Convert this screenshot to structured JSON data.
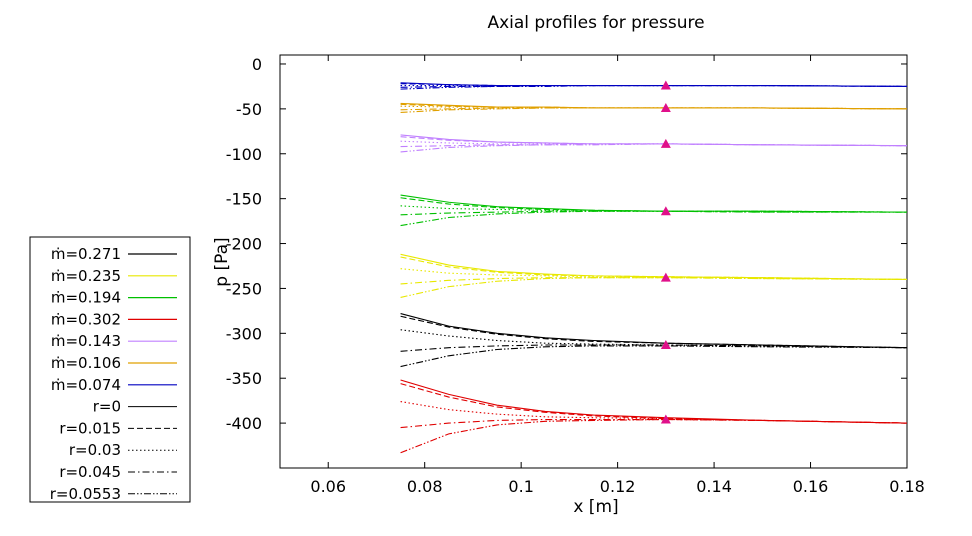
{
  "chart_data": {
    "type": "line",
    "title": "Axial profiles for pressure",
    "xlabel": "x [m]",
    "ylabel": "p [Pa]",
    "xlim": [
      0.05,
      0.18
    ],
    "ylim": [
      -450,
      10
    ],
    "xticks": [
      0.06,
      0.08,
      0.1,
      0.12,
      0.14,
      0.16,
      0.18
    ],
    "xtick_labels": [
      "0.06",
      "0.08",
      "0.1",
      "0.12",
      "0.14",
      "0.16",
      "0.18"
    ],
    "yticks": [
      0,
      -50,
      -100,
      -150,
      -200,
      -250,
      -300,
      -350,
      -400
    ],
    "ytick_labels": [
      "0",
      "-50",
      "-100",
      "-150",
      "-200",
      "-250",
      "-300",
      "-350",
      "-400"
    ],
    "grid": false,
    "legend_position": "left",
    "legend": {
      "mass_flow": [
        {
          "label": "ṁ=0.271",
          "color": "#000000"
        },
        {
          "label": "ṁ=0.235",
          "color": "#e8e800"
        },
        {
          "label": "ṁ=0.194",
          "color": "#00c000"
        },
        {
          "label": "ṁ=0.302",
          "color": "#e00000"
        },
        {
          "label": "ṁ=0.143",
          "color": "#c080ff"
        },
        {
          "label": "ṁ=0.106",
          "color": "#e0a000"
        },
        {
          "label": "ṁ=0.074",
          "color": "#0000c0"
        }
      ],
      "radius": [
        {
          "label": "r=0",
          "dash": "solid"
        },
        {
          "label": "r=0.015",
          "dash": "dashed"
        },
        {
          "label": "r=0.03",
          "dash": "dotted"
        },
        {
          "label": "r=0.045",
          "dash": "dashdot"
        },
        {
          "label": "r=0.0553",
          "dash": "dashdotdot"
        }
      ]
    },
    "x": [
      0.075,
      0.085,
      0.095,
      0.105,
      0.115,
      0.13,
      0.15,
      0.18
    ],
    "groups": [
      {
        "mdot": 0.271,
        "color": "#000000",
        "radii": [
          {
            "r": 0,
            "values": [
              -278,
              -292,
              -300,
              -305,
              -308,
              -311,
              -313,
              -316
            ]
          },
          {
            "r": 0.015,
            "values": [
              -281,
              -293,
              -301,
              -306,
              -309,
              -311,
              -313,
              -316
            ]
          },
          {
            "r": 0.03,
            "values": [
              -296,
              -303,
              -308,
              -311,
              -312,
              -313,
              -314,
              -316
            ]
          },
          {
            "r": 0.045,
            "values": [
              -320,
              -316,
              -314,
              -313,
              -313,
              -313,
              -314,
              -316
            ]
          },
          {
            "r": 0.0553,
            "values": [
              -337,
              -325,
              -318,
              -315,
              -314,
              -314,
              -315,
              -316
            ]
          }
        ]
      },
      {
        "mdot": 0.235,
        "color": "#e8e800",
        "radii": [
          {
            "r": 0,
            "values": [
              -212,
              -224,
              -231,
              -234,
              -236,
              -237,
              -238,
              -240
            ]
          },
          {
            "r": 0.015,
            "values": [
              -215,
              -226,
              -232,
              -235,
              -236,
              -237,
              -238,
              -240
            ]
          },
          {
            "r": 0.03,
            "values": [
              -228,
              -233,
              -235,
              -236,
              -237,
              -237,
              -238,
              -240
            ]
          },
          {
            "r": 0.045,
            "values": [
              -245,
              -241,
              -239,
              -238,
              -238,
              -238,
              -239,
              -240
            ]
          },
          {
            "r": 0.0553,
            "values": [
              -260,
              -248,
              -242,
              -239,
              -238,
              -238,
              -239,
              -240
            ]
          }
        ]
      },
      {
        "mdot": 0.194,
        "color": "#00c000",
        "radii": [
          {
            "r": 0,
            "values": [
              -146,
              -154,
              -159,
              -161,
              -163,
              -164,
              -164,
              -165
            ]
          },
          {
            "r": 0.015,
            "values": [
              -149,
              -156,
              -160,
              -162,
              -163,
              -164,
              -164,
              -165
            ]
          },
          {
            "r": 0.03,
            "values": [
              -158,
              -161,
              -162,
              -163,
              -164,
              -164,
              -164,
              -165
            ]
          },
          {
            "r": 0.045,
            "values": [
              -168,
              -166,
              -165,
              -164,
              -164,
              -164,
              -165,
              -165
            ]
          },
          {
            "r": 0.0553,
            "values": [
              -180,
              -171,
              -167,
              -165,
              -164,
              -164,
              -165,
              -165
            ]
          }
        ]
      },
      {
        "mdot": 0.302,
        "color": "#e00000",
        "radii": [
          {
            "r": 0,
            "values": [
              -352,
              -368,
              -380,
              -387,
              -391,
              -394,
              -397,
              -400
            ]
          },
          {
            "r": 0.015,
            "values": [
              -356,
              -371,
              -382,
              -388,
              -392,
              -395,
              -397,
              -400
            ]
          },
          {
            "r": 0.03,
            "values": [
              -376,
              -385,
              -390,
              -393,
              -394,
              -395,
              -397,
              -400
            ]
          },
          {
            "r": 0.045,
            "values": [
              -405,
              -400,
              -397,
              -396,
              -396,
              -396,
              -397,
              -400
            ]
          },
          {
            "r": 0.0553,
            "values": [
              -433,
              -412,
              -402,
              -398,
              -397,
              -396,
              -397,
              -400
            ]
          }
        ]
      },
      {
        "mdot": 0.143,
        "color": "#c080ff",
        "radii": [
          {
            "r": 0,
            "values": [
              -79,
              -84,
              -87,
              -88,
              -89,
              -89,
              -90,
              -91
            ]
          },
          {
            "r": 0.015,
            "values": [
              -81,
              -85,
              -87,
              -88,
              -89,
              -89,
              -90,
              -91
            ]
          },
          {
            "r": 0.03,
            "values": [
              -86,
              -88,
              -89,
              -89,
              -89,
              -89,
              -90,
              -91
            ]
          },
          {
            "r": 0.045,
            "values": [
              -92,
              -91,
              -90,
              -90,
              -89,
              -89,
              -90,
              -91
            ]
          },
          {
            "r": 0.0553,
            "values": [
              -98,
              -93,
              -91,
              -90,
              -90,
              -89,
              -90,
              -91
            ]
          }
        ]
      },
      {
        "mdot": 0.106,
        "color": "#e0a000",
        "radii": [
          {
            "r": 0,
            "values": [
              -44,
              -46,
              -48,
              -48,
              -49,
              -49,
              -49,
              -50
            ]
          },
          {
            "r": 0.015,
            "values": [
              -45,
              -47,
              -48,
              -48,
              -49,
              -49,
              -49,
              -50
            ]
          },
          {
            "r": 0.03,
            "values": [
              -47,
              -48,
              -48,
              -49,
              -49,
              -49,
              -49,
              -50
            ]
          },
          {
            "r": 0.045,
            "values": [
              -51,
              -50,
              -49,
              -49,
              -49,
              -49,
              -49,
              -50
            ]
          },
          {
            "r": 0.0553,
            "values": [
              -54,
              -51,
              -50,
              -49,
              -49,
              -49,
              -49,
              -50
            ]
          }
        ]
      },
      {
        "mdot": 0.074,
        "color": "#0000c0",
        "radii": [
          {
            "r": 0,
            "values": [
              -21,
              -23,
              -24,
              -24,
              -24,
              -24,
              -24,
              -25
            ]
          },
          {
            "r": 0.015,
            "values": [
              -22,
              -23,
              -24,
              -24,
              -24,
              -24,
              -24,
              -25
            ]
          },
          {
            "r": 0.03,
            "values": [
              -24,
              -24,
              -24,
              -24,
              -24,
              -24,
              -24,
              -25
            ]
          },
          {
            "r": 0.045,
            "values": [
              -26,
              -25,
              -25,
              -24,
              -24,
              -24,
              -24,
              -25
            ]
          },
          {
            "r": 0.0553,
            "values": [
              -28,
              -26,
              -25,
              -25,
              -24,
              -24,
              -24,
              -25
            ]
          }
        ]
      }
    ],
    "markers": {
      "shape": "triangle",
      "color": "#e0108a",
      "x": 0.13,
      "y": [
        -24,
        -49,
        -89,
        -164,
        -238,
        -313,
        -396
      ]
    }
  }
}
